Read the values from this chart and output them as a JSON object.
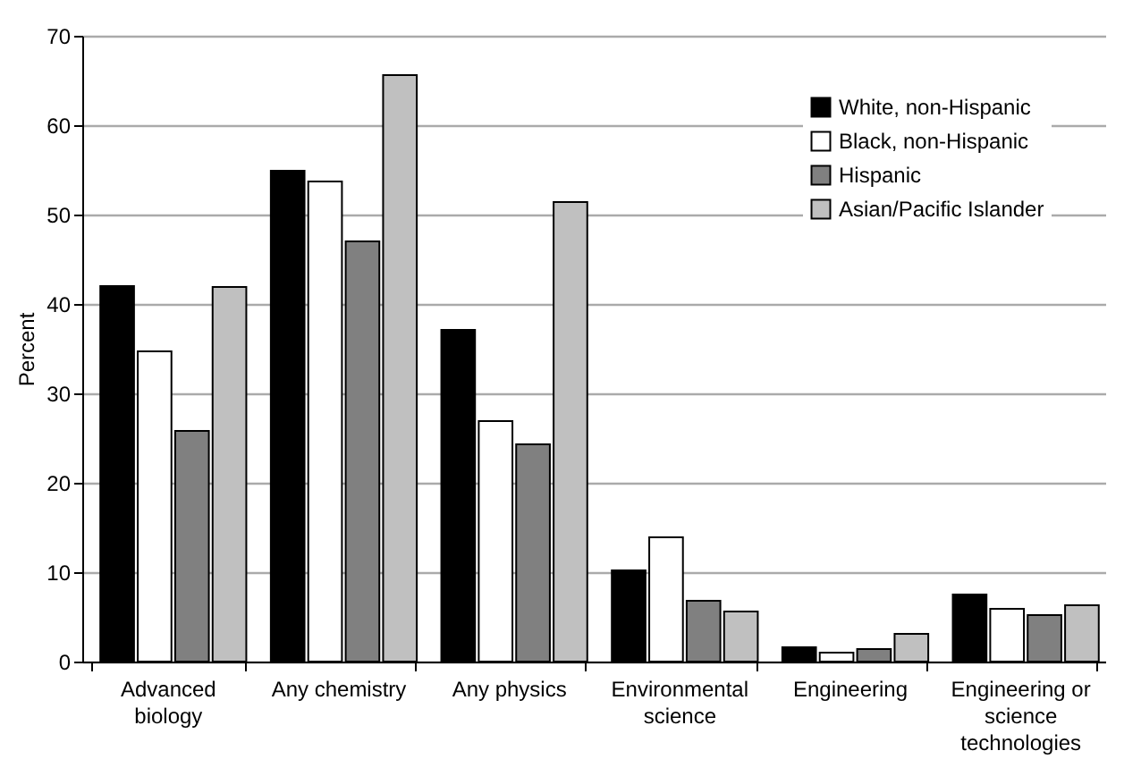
{
  "chart_data": {
    "type": "bar",
    "ylabel": "Percent",
    "categories": [
      "Advanced biology",
      "Any chemistry",
      "Any physics",
      "Environmental science",
      "Engineering",
      "Engineering or science technologies"
    ],
    "series": [
      {
        "name": "White, non-Hispanic",
        "color": "#000000",
        "values": [
          42.0,
          54.9,
          37.1,
          10.2,
          1.6,
          7.5
        ]
      },
      {
        "name": "Black, non-Hispanic",
        "color": "#ffffff",
        "values": [
          34.7,
          53.7,
          26.9,
          13.9,
          1.0,
          5.9
        ]
      },
      {
        "name": "Hispanic",
        "color": "#808080",
        "values": [
          25.8,
          47.0,
          24.3,
          6.8,
          1.4,
          5.2
        ]
      },
      {
        "name": "Asian/Pacific Islander",
        "color": "#c0c0c0",
        "values": [
          41.9,
          65.6,
          51.4,
          5.6,
          3.1,
          6.3
        ]
      }
    ],
    "ylim": [
      0,
      70
    ],
    "yticks": [
      0,
      10,
      20,
      30,
      40,
      50,
      60,
      70
    ],
    "grid": "y",
    "legend": "top right"
  }
}
